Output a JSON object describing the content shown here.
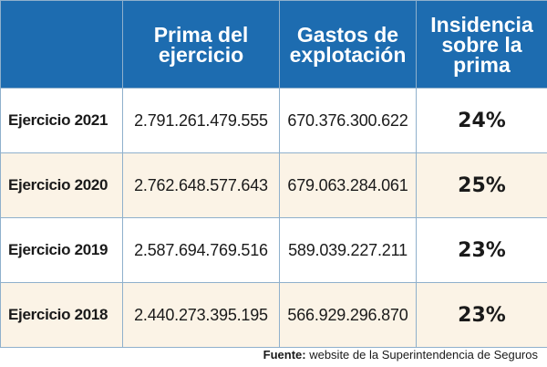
{
  "chart_data": {
    "type": "table",
    "columns": [
      "",
      "Prima del\nejercicio",
      "Gastos de\nexplotación",
      "Insidencia\nsobre la\nprima"
    ],
    "rows": [
      {
        "label": "Ejercicio 2021",
        "prima": "2.791.261.479.555",
        "gastos": "670.376.300.622",
        "insidencia": "24%"
      },
      {
        "label": "Ejercicio 2020",
        "prima": "2.762.648.577.643",
        "gastos": "679.063.284.061",
        "insidencia": "25%"
      },
      {
        "label": "Ejercicio 2019",
        "prima": "2.587.694.769.516",
        "gastos": "589.039.227.211",
        "insidencia": "23%"
      },
      {
        "label": "Ejercicio 2018",
        "prima": "2.440.273.395.195",
        "gastos": "566.929.296.870",
        "insidencia": "23%"
      }
    ],
    "source_label": "Fuente:",
    "source_text": " website de la Superintendencia de Seguros"
  },
  "colors": {
    "header_bg": "#1d6cb0",
    "header_text": "#ffffff",
    "row_alt_bg": "#fbf3e6",
    "border": "#8fb0cc"
  }
}
